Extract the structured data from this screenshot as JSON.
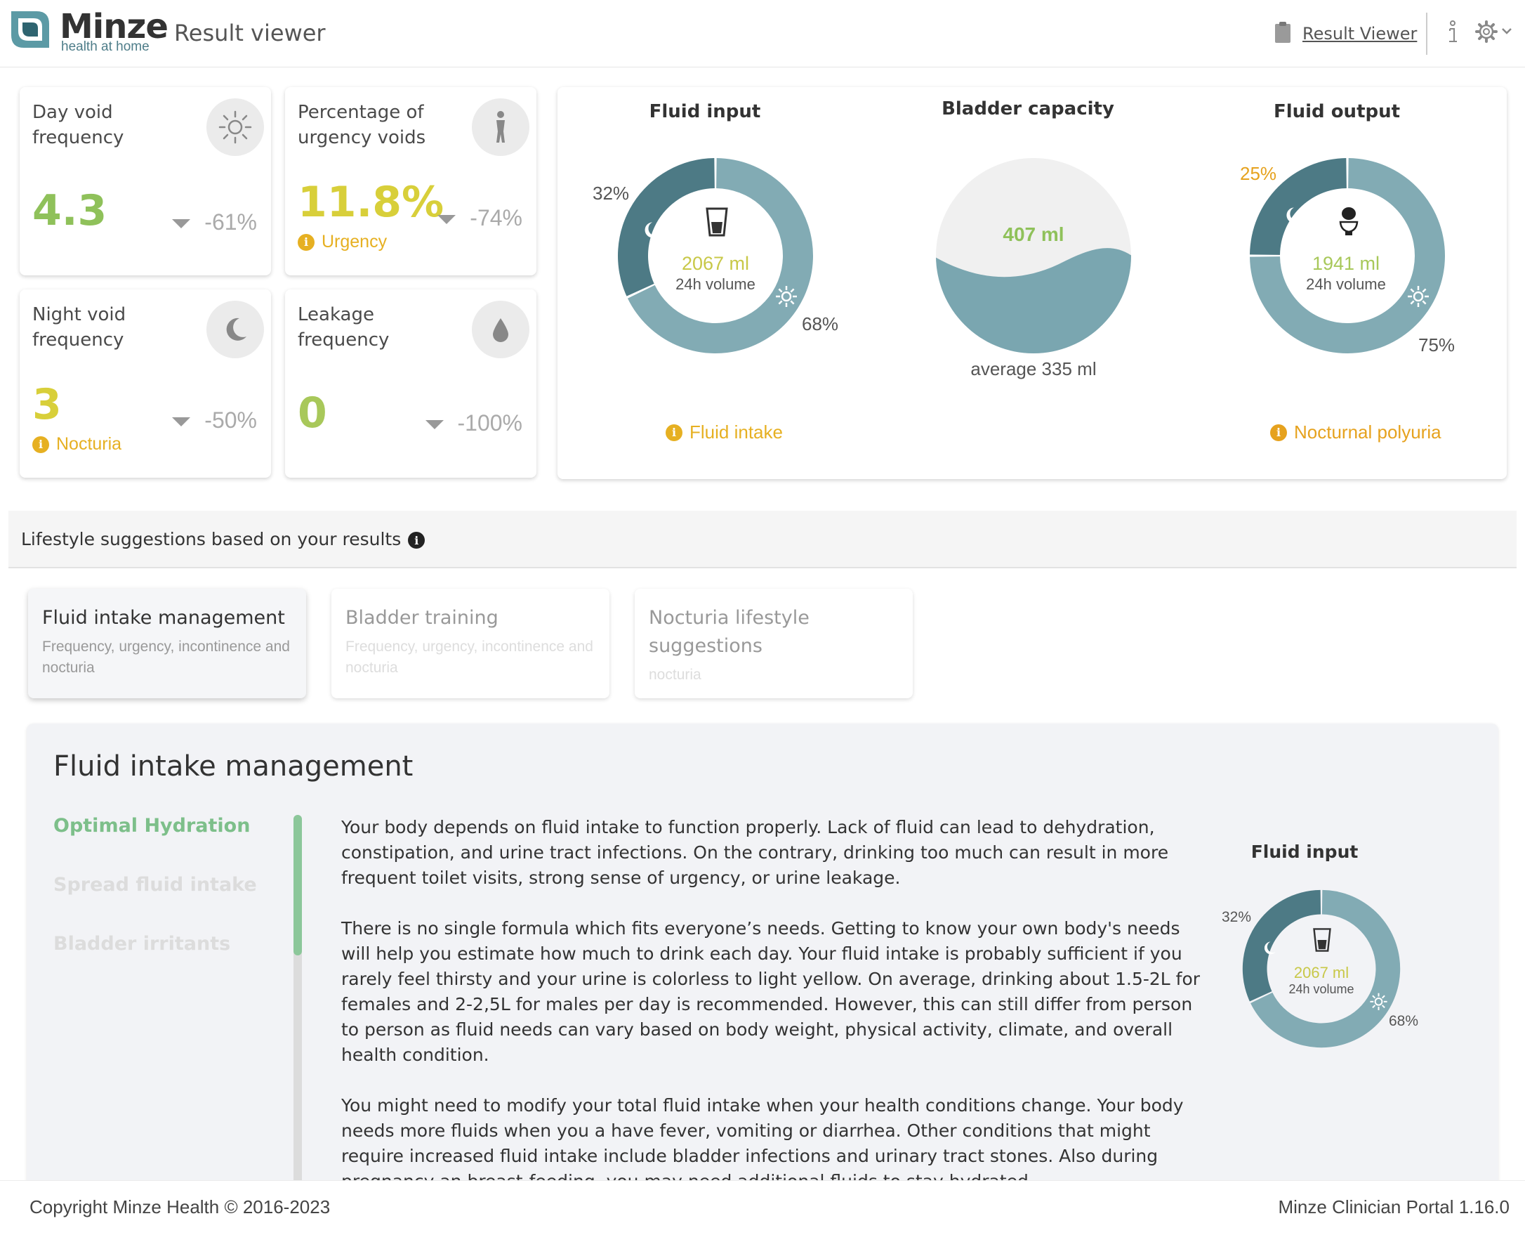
{
  "header": {
    "brand": "Minze",
    "tagline": "health at home",
    "page_title": "Result viewer",
    "link_label": "Result Viewer"
  },
  "stats": {
    "day_void": {
      "title": "Day void frequency",
      "value": "4.3",
      "change": "-61%",
      "value_color": "#8fc15a"
    },
    "urgency": {
      "title": "Percentage of urgency voids",
      "value": "11.8%",
      "change": "-74%",
      "alert": "Urgency",
      "value_color": "#d8cf3a"
    },
    "night_void": {
      "title": "Night void frequency",
      "value": "3",
      "change": "-50%",
      "alert": "Nocturia",
      "value_color": "#d8cf3a"
    },
    "leakage": {
      "title": "Leakage frequency",
      "value": "0",
      "change": "-100%",
      "value_color": "#a8c85a"
    }
  },
  "charts": {
    "fluid_input": {
      "title": "Fluid input",
      "night_pct": "32%",
      "day_pct": "68%",
      "value": "2067 ml",
      "label": "24h volume",
      "alert": "Fluid intake"
    },
    "bladder": {
      "title": "Bladder capacity",
      "value": "407 ml",
      "average": "average 335 ml"
    },
    "fluid_output": {
      "title": "Fluid output",
      "night_pct": "25%",
      "day_pct": "75%",
      "value": "1941 ml",
      "label": "24h volume",
      "alert": "Nocturnal polyuria"
    }
  },
  "chart_data": [
    {
      "type": "pie",
      "title": "Fluid input",
      "categories": [
        "Night",
        "Day"
      ],
      "values": [
        32,
        68
      ],
      "colors": [
        "#4d7a85",
        "#82abb4"
      ]
    },
    {
      "type": "pie",
      "title": "Fluid output",
      "categories": [
        "Night",
        "Day"
      ],
      "values": [
        25,
        75
      ],
      "colors": [
        "#4d7a85",
        "#82abb4"
      ]
    }
  ],
  "lifestyle": {
    "heading": "Lifestyle suggestions based on your results",
    "tabs": [
      {
        "title": "Fluid intake management",
        "subtitle": "Frequency, urgency, incontinence and nocturia"
      },
      {
        "title": "Bladder training",
        "subtitle": "Frequency, urgency, incontinence and nocturia"
      },
      {
        "title": "Nocturia lifestyle suggestions",
        "subtitle": "nocturia"
      }
    ]
  },
  "panel": {
    "title": "Fluid intake management",
    "nav": [
      "Optimal Hydration",
      "Spread fluid intake",
      "Bladder irritants"
    ],
    "paragraphs": [
      "Your body depends on fluid intake to function properly. Lack of fluid can lead to dehydration, constipation, and urine tract infections. On the contrary, drinking too much can result in more frequent toilet visits, strong sense of urgency, or urine leakage.",
      "There is no single formula which fits everyone’s needs. Getting to know your own body's needs will help you estimate how much to drink each day. Your fluid intake is probably sufficient if you rarely feel thirsty and your urine is colorless to light yellow. On average, drinking about 1.5-2L for females and 2-2,5L for males per day is recommended. However, this can still differ from person to person as fluid needs can vary based on body weight, physical activity, climate, and overall health condition.",
      "You might need to modify your total fluid intake when your health conditions change. Your body needs more fluids when you a have fever, vomiting or diarrhea. Other conditions that might require increased fluid intake include bladder infections and urinary tract stones. Also during pregnancy an breast-feeding, you may need additional fluids to stay hydrated."
    ],
    "mini_chart": {
      "title": "Fluid input",
      "night_pct": "32%",
      "day_pct": "68%",
      "value": "2067 ml",
      "label": "24h volume"
    }
  },
  "footer": {
    "copyright": "Copyright Minze Health © 2016-2023",
    "version": "Minze Clinician Portal 1.16.0"
  }
}
